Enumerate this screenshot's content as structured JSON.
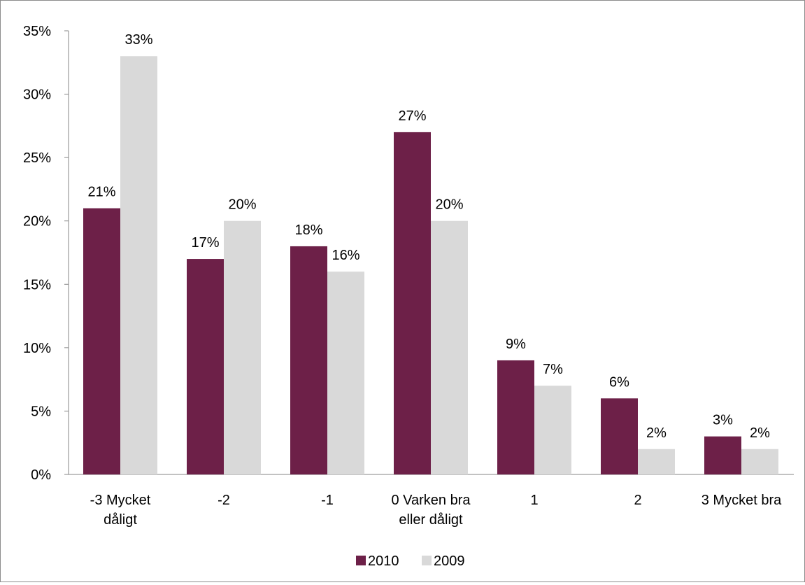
{
  "chart_data": {
    "type": "bar",
    "categories": [
      [
        "-3 Mycket",
        "dåligt"
      ],
      [
        "-2"
      ],
      [
        "-1"
      ],
      [
        "0 Varken bra",
        "eller dåligt"
      ],
      [
        "1"
      ],
      [
        "2"
      ],
      [
        "3 Mycket bra"
      ]
    ],
    "series": [
      {
        "name": "2010",
        "color": "#6d2048",
        "values": [
          21,
          17,
          18,
          27,
          9,
          6,
          3
        ],
        "labels": [
          "21%",
          "17%",
          "18%",
          "27%",
          "9%",
          "6%",
          "3%"
        ]
      },
      {
        "name": "2009",
        "color": "#d9d9d9",
        "values": [
          33,
          20,
          16,
          20,
          7,
          2,
          2
        ],
        "labels": [
          "33%",
          "20%",
          "16%",
          "20%",
          "7%",
          "2%",
          "2%"
        ]
      }
    ],
    "ylim": [
      0,
      35
    ],
    "yticks": [
      0,
      5,
      10,
      15,
      20,
      25,
      30,
      35
    ],
    "ytick_labels": [
      "0%",
      "5%",
      "10%",
      "15%",
      "20%",
      "25%",
      "30%",
      "35%"
    ],
    "title": "",
    "xlabel": "",
    "ylabel": "",
    "grid": false,
    "legend": "bottom-center"
  }
}
